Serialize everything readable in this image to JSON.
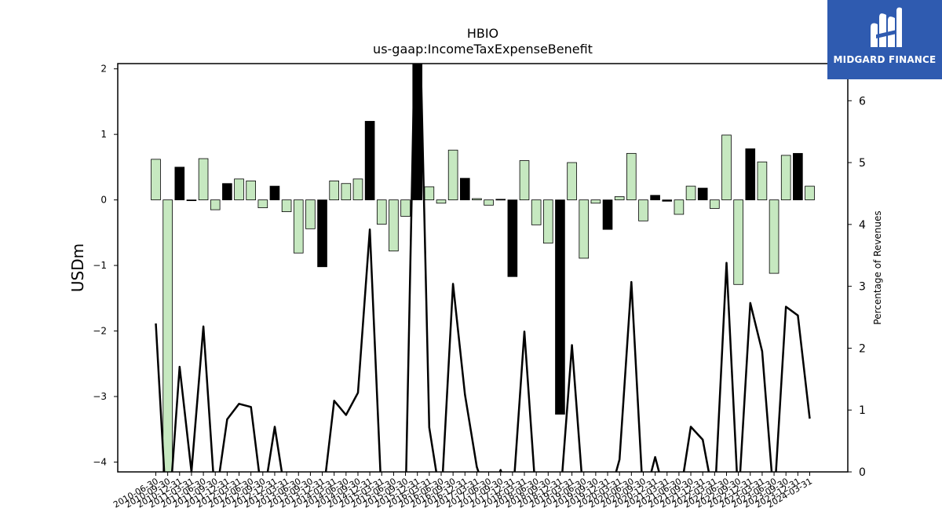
{
  "brand": {
    "name": "MIDGARD FINANCE",
    "color": "#2f5bb0"
  },
  "chart_data": {
    "type": "bar",
    "title": "HBIO",
    "subtitle": "us-gaap:IncomeTaxExpenseBenefit",
    "ylabel": "USDm",
    "y2label": "Percentage of Revenues",
    "ylim": [
      -4.15,
      2.08
    ],
    "y2lim": [
      0,
      6.6
    ],
    "yticks": [
      -4,
      -3,
      -2,
      -1,
      0,
      1,
      2
    ],
    "y2ticks": [
      0,
      1,
      2,
      3,
      4,
      5,
      6
    ],
    "grid": false,
    "colors": {
      "positive_bar": "#c6e8c0",
      "highlight_bar": "#000000",
      "line": "#000000"
    },
    "x": [
      "2010-06-30",
      "2010-09-30",
      "2010-12-31",
      "2011-03-31",
      "2011-06-30",
      "2011-09-30",
      "2011-12-31",
      "2012-03-31",
      "2012-06-30",
      "2012-09-30",
      "2012-12-31",
      "2013-03-31",
      "2013-06-30",
      "2013-09-30",
      "2013-12-31",
      "2014-03-31",
      "2014-06-30",
      "2014-09-30",
      "2014-12-31",
      "2015-03-31",
      "2015-06-30",
      "2015-09-30",
      "2015-12-31",
      "2016-03-31",
      "2016-06-30",
      "2016-09-30",
      "2016-12-31",
      "2017-03-31",
      "2017-06-30",
      "2017-09-30",
      "2017-12-31",
      "2018-03-31",
      "2018-06-30",
      "2018-09-30",
      "2018-12-31",
      "2019-03-31",
      "2019-06-30",
      "2019-09-30",
      "2019-12-31",
      "2020-03-31",
      "2020-06-30",
      "2020-09-30",
      "2020-12-31",
      "2021-03-31",
      "2021-06-30",
      "2021-09-30",
      "2021-12-31",
      "2022-03-31",
      "2022-06-30",
      "2022-09-30",
      "2022-12-31",
      "2023-03-31",
      "2023-06-30",
      "2023-09-30",
      "2023-12-31",
      "2024-03-31"
    ],
    "values": [
      0.62,
      -4.2,
      0.5,
      -0.01,
      0.63,
      -0.15,
      0.25,
      0.32,
      0.29,
      -0.12,
      0.21,
      -0.18,
      -0.81,
      -0.44,
      -1.02,
      0.29,
      0.25,
      0.32,
      1.2,
      -0.37,
      -0.78,
      -0.25,
      2.5,
      0.2,
      -0.05,
      0.76,
      0.33,
      0.02,
      -0.08,
      0.01,
      -1.17,
      0.6,
      -0.38,
      -0.66,
      -3.27,
      0.57,
      -0.89,
      -0.05,
      -0.45,
      0.05,
      0.71,
      -0.32,
      0.07,
      -0.02,
      -0.22,
      0.21,
      0.18,
      -0.13,
      0.99,
      -1.29,
      0.78,
      0.58,
      -1.12,
      0.68,
      0.71,
      0.21
    ],
    "highlight": [
      false,
      false,
      true,
      true,
      false,
      false,
      true,
      false,
      false,
      false,
      true,
      false,
      false,
      false,
      true,
      false,
      false,
      false,
      true,
      false,
      false,
      false,
      true,
      false,
      false,
      false,
      true,
      false,
      false,
      true,
      true,
      false,
      false,
      false,
      true,
      false,
      false,
      false,
      true,
      false,
      false,
      false,
      true,
      true,
      false,
      false,
      true,
      false,
      false,
      false,
      true,
      false,
      false,
      false,
      true,
      false
    ],
    "series": [
      {
        "axis": "right",
        "type": "line",
        "values": [
          2.4,
          -1.0,
          1.7,
          0.0,
          2.35,
          -0.5,
          0.85,
          1.1,
          1.05,
          -0.5,
          0.73,
          -0.5,
          -0.5,
          -0.5,
          -0.5,
          1.15,
          0.92,
          1.28,
          3.92,
          -0.5,
          -0.5,
          -0.5,
          9.0,
          0.72,
          -0.5,
          3.04,
          1.25,
          0.08,
          -0.5,
          0.03,
          -0.5,
          2.27,
          -0.5,
          -0.5,
          -0.5,
          2.05,
          -0.5,
          -0.5,
          -0.5,
          0.2,
          3.07,
          -0.5,
          0.24,
          -0.5,
          -0.5,
          0.73,
          0.52,
          -0.5,
          3.38,
          -0.5,
          2.73,
          1.95,
          -0.5,
          2.67,
          2.53,
          0.86
        ]
      }
    ]
  }
}
